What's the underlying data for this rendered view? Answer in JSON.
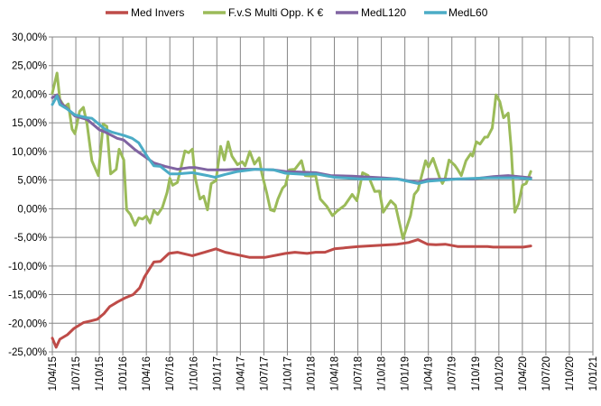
{
  "chart_data": {
    "type": "line",
    "title": "",
    "xlabel": "",
    "ylabel": "",
    "x_unit": "decimal year",
    "xlim": [
      2015.25,
      2021.0
    ],
    "ylim": [
      -25,
      30
    ],
    "grid": true,
    "legend_position": "top",
    "y_ticks": [
      30,
      25,
      20,
      15,
      10,
      5,
      0,
      -5,
      -10,
      -15,
      -20,
      -25
    ],
    "y_tick_labels": [
      "30,00%",
      "25,00%",
      "20,00%",
      "15,00%",
      "10,00%",
      "5,00%",
      "0,00%",
      "-5,00%",
      "-10,00%",
      "-15,00%",
      "-20,00%",
      "-25,00%"
    ],
    "x_ticks": [
      2015.25,
      2015.5,
      2015.75,
      2016.0,
      2016.25,
      2016.5,
      2016.75,
      2017.0,
      2017.25,
      2017.5,
      2017.75,
      2018.0,
      2018.25,
      2018.5,
      2018.75,
      2019.0,
      2019.25,
      2019.5,
      2019.75,
      2020.0,
      2020.25,
      2020.5,
      2020.75,
      2021.0
    ],
    "x_tick_labels": [
      "1/04/15",
      "1/07/15",
      "1/10/15",
      "1/01/16",
      "1/04/16",
      "1/07/16",
      "1/10/16",
      "1/01/17",
      "1/04/17",
      "1/07/17",
      "1/10/17",
      "1/01/18",
      "1/04/18",
      "1/07/18",
      "1/10/18",
      "1/01/19",
      "1/04/19",
      "1/07/19",
      "1/10/19",
      "1/01/20",
      "1/04/20",
      "1/07/20",
      "1/10/20",
      "1/01/21"
    ],
    "series": [
      {
        "name": "Med Invers",
        "color": "#BE4B48",
        "x": [
          2015.25,
          2015.29,
          2015.33,
          2015.41,
          2015.48,
          2015.58,
          2015.66,
          2015.73,
          2015.8,
          2015.86,
          2015.94,
          2016.02,
          2016.11,
          2016.18,
          2016.23,
          2016.28,
          2016.33,
          2016.4,
          2016.49,
          2016.58,
          2016.74,
          2016.87,
          2016.99,
          2017.09,
          2017.35,
          2017.51,
          2017.73,
          2017.83,
          2017.96,
          2018.05,
          2018.15,
          2018.25,
          2018.44,
          2018.51,
          2018.92,
          2019.04,
          2019.14,
          2019.24,
          2019.33,
          2019.43,
          2019.56,
          2019.88,
          2019.94,
          2020.26,
          2020.34
        ],
        "y": [
          -22.6,
          -24.2,
          -22.8,
          -22.0,
          -20.9,
          -19.9,
          -19.6,
          -19.3,
          -18.3,
          -17.1,
          -16.3,
          -15.6,
          -15.0,
          -13.8,
          -11.9,
          -10.6,
          -9.3,
          -9.2,
          -7.8,
          -7.6,
          -8.2,
          -7.6,
          -7.0,
          -7.6,
          -8.5,
          -8.5,
          -7.8,
          -7.6,
          -7.8,
          -7.6,
          -7.6,
          -7.0,
          -6.7,
          -6.6,
          -6.2,
          -5.9,
          -5.4,
          -6.2,
          -6.3,
          -6.2,
          -6.6,
          -6.6,
          -6.7,
          -6.7,
          -6.5
        ]
      },
      {
        "name": "F.v.S Multi Opp. K €",
        "color": "#9BBB59",
        "x": [
          2015.25,
          2015.3,
          2015.33,
          2015.38,
          2015.42,
          2015.46,
          2015.49,
          2015.54,
          2015.58,
          2015.62,
          2015.67,
          2015.74,
          2015.79,
          2015.83,
          2015.87,
          2015.93,
          2015.96,
          2016.01,
          2016.04,
          2016.08,
          2016.13,
          2016.17,
          2016.21,
          2016.25,
          2016.29,
          2016.33,
          2016.37,
          2016.42,
          2016.47,
          2016.5,
          2016.53,
          2016.58,
          2016.63,
          2016.66,
          2016.7,
          2016.74,
          2016.77,
          2016.82,
          2016.86,
          2016.9,
          2016.94,
          2016.99,
          2017.04,
          2017.08,
          2017.12,
          2017.16,
          2017.22,
          2017.27,
          2017.3,
          2017.35,
          2017.4,
          2017.45,
          2017.48,
          2017.53,
          2017.57,
          2017.61,
          2017.65,
          2017.7,
          2017.73,
          2017.77,
          2017.83,
          2017.9,
          2017.94,
          2018.02,
          2018.05,
          2018.1,
          2018.17,
          2018.23,
          2018.28,
          2018.36,
          2018.44,
          2018.49,
          2018.55,
          2018.61,
          2018.68,
          2018.73,
          2018.77,
          2018.85,
          2018.9,
          2018.98,
          2019.06,
          2019.1,
          2019.14,
          2019.22,
          2019.25,
          2019.3,
          2019.37,
          2019.4,
          2019.43,
          2019.47,
          2019.53,
          2019.56,
          2019.6,
          2019.65,
          2019.7,
          2019.72,
          2019.76,
          2019.8,
          2019.85,
          2019.88,
          2019.93,
          2019.97,
          2020.01,
          2020.05,
          2020.1,
          2020.13,
          2020.17,
          2020.21,
          2020.25,
          2020.29,
          2020.34
        ],
        "y": [
          20.2,
          23.7,
          19.1,
          17.8,
          18.3,
          13.9,
          13.1,
          17.0,
          17.7,
          14.8,
          8.4,
          5.8,
          14.8,
          14.4,
          6.1,
          6.9,
          10.4,
          8.5,
          -0.2,
          -1.0,
          -2.9,
          -1.6,
          -1.8,
          -1.3,
          -2.5,
          -0.3,
          -1.0,
          0.2,
          2.8,
          5.3,
          4.1,
          4.6,
          8.0,
          10.1,
          9.8,
          10.4,
          5.4,
          1.7,
          2.2,
          -0.2,
          4.4,
          4.9,
          10.9,
          8.5,
          11.7,
          9.2,
          7.7,
          8.2,
          7.5,
          10.0,
          7.8,
          8.9,
          6.1,
          2.8,
          -0.2,
          -0.4,
          1.7,
          3.6,
          4.1,
          6.8,
          6.9,
          8.4,
          5.8,
          5.7,
          5.8,
          1.7,
          0.4,
          -1.2,
          -0.4,
          0.6,
          2.5,
          1.4,
          6.3,
          5.8,
          3.0,
          3.1,
          -0.6,
          1.4,
          0.6,
          -5.2,
          -1.2,
          2.5,
          3.3,
          8.4,
          7.3,
          8.8,
          5.4,
          4.4,
          5.4,
          8.5,
          7.6,
          6.9,
          5.8,
          8.4,
          9.6,
          9.2,
          11.7,
          11.3,
          12.5,
          12.5,
          14.1,
          19.9,
          18.7,
          15.9,
          16.7,
          10.7,
          -0.6,
          0.9,
          4.1,
          4.4,
          6.5
        ]
      },
      {
        "name": "MedL120",
        "color": "#8064A2",
        "x": [
          2015.25,
          2015.3,
          2015.35,
          2015.41,
          2015.49,
          2015.62,
          2015.75,
          2015.81,
          2015.94,
          2016.01,
          2016.13,
          2016.26,
          2016.33,
          2016.45,
          2016.58,
          2016.71,
          2016.77,
          2016.9,
          2017.09,
          2017.22,
          2017.41,
          2017.6,
          2017.73,
          2018.05,
          2018.21,
          2018.44,
          2018.76,
          2018.92,
          2019.14,
          2019.24,
          2019.56,
          2019.72,
          2019.94,
          2020.1,
          2020.34
        ],
        "y": [
          19.4,
          19.9,
          18.3,
          17.5,
          16.2,
          15.6,
          13.8,
          13.4,
          12.3,
          12.0,
          10.3,
          8.8,
          8.0,
          7.4,
          6.9,
          7.2,
          7.2,
          6.8,
          6.8,
          6.9,
          6.9,
          6.8,
          6.5,
          6.3,
          5.8,
          5.7,
          5.4,
          5.2,
          4.6,
          5.1,
          5.2,
          5.2,
          5.6,
          5.8,
          5.4
        ]
      },
      {
        "name": "MedL60",
        "color": "#4BACC6",
        "x": [
          2015.25,
          2015.3,
          2015.33,
          2015.41,
          2015.49,
          2015.62,
          2015.67,
          2015.81,
          2015.88,
          2016.01,
          2016.1,
          2016.17,
          2016.26,
          2016.33,
          2016.4,
          2016.5,
          2016.58,
          2016.74,
          2016.9,
          2016.98,
          2017.09,
          2017.22,
          2017.41,
          2017.6,
          2017.73,
          2017.93,
          2018.05,
          2018.15,
          2018.25,
          2018.53,
          2018.92,
          2019.14,
          2019.24,
          2019.56,
          2019.88,
          2020.2,
          2020.34
        ],
        "y": [
          18.2,
          19.7,
          18.2,
          17.4,
          16.4,
          15.9,
          15.8,
          13.9,
          13.4,
          12.8,
          12.3,
          11.5,
          9.1,
          7.5,
          7.4,
          6.1,
          6.1,
          6.3,
          5.8,
          5.5,
          6.0,
          6.5,
          6.9,
          6.8,
          6.2,
          6.0,
          6.1,
          5.8,
          5.5,
          5.2,
          5.2,
          4.4,
          4.8,
          5.2,
          5.4,
          5.4,
          5.2
        ]
      }
    ]
  }
}
